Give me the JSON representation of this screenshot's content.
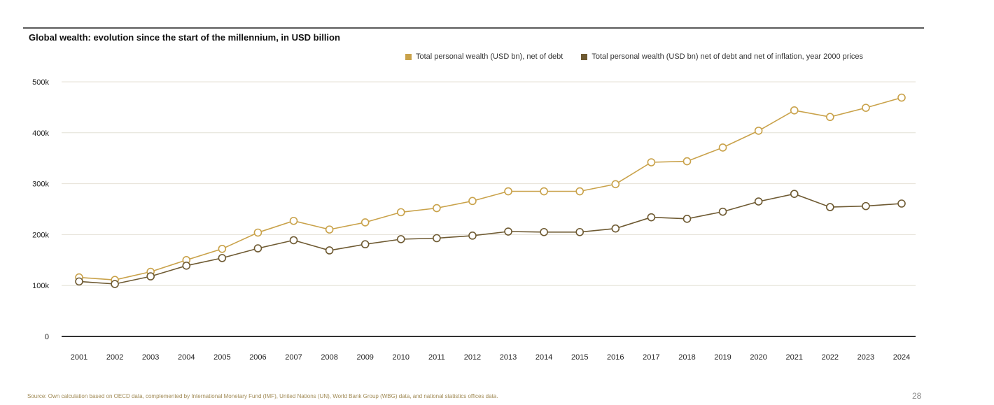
{
  "chart_title": "Global wealth: evolution since the start of the millennium, in USD billion",
  "colors": {
    "nominal": "#c9a24a",
    "real": "#6e5a32",
    "grid": "#e4e0d6",
    "axis": "#333333"
  },
  "chart_data": {
    "type": "line",
    "title": "Global wealth: evolution since the start of the millennium, in USD billion",
    "xlabel": "",
    "ylabel": "",
    "x": [
      "2001",
      "2002",
      "2003",
      "2004",
      "2005",
      "2006",
      "2007",
      "2008",
      "2009",
      "2010",
      "2011",
      "2012",
      "2013",
      "2014",
      "2015",
      "2016",
      "2017",
      "2018",
      "2019",
      "2020",
      "2021",
      "2022",
      "2023",
      "2024"
    ],
    "ylim": [
      0,
      500000
    ],
    "yticks": [
      0,
      100000,
      200000,
      300000,
      400000,
      500000
    ],
    "ytick_labels": [
      "0",
      "100k",
      "200k",
      "300k",
      "400k",
      "500k"
    ],
    "grid": true,
    "legend_position": "top-right",
    "markers": "hollow-circle",
    "series": [
      {
        "name": "Total personal wealth (USD bn), net of debt",
        "color": "#c9a24a",
        "values": [
          116000,
          111000,
          127000,
          150000,
          172000,
          204000,
          227000,
          210000,
          224000,
          244000,
          252000,
          266000,
          285000,
          285000,
          285000,
          299000,
          342000,
          344000,
          371000,
          404000,
          444000,
          431000,
          449000,
          469000
        ]
      },
      {
        "name": "Total personal wealth (USD bn) net of debt and net of inflation, year 2000 prices",
        "color": "#6e5a32",
        "values": [
          108000,
          103000,
          118000,
          139000,
          154000,
          173000,
          189000,
          169000,
          181000,
          191000,
          193000,
          198000,
          206000,
          205000,
          205000,
          212000,
          234000,
          231000,
          245000,
          265000,
          280000,
          254000,
          256000,
          261000
        ]
      }
    ]
  },
  "source": "Source: Own calculation based on OECD data, complemented by International Monetary Fund (IMF), United Nations (UN), World Bank Group (WBG) data, and national statistics offices data.",
  "page_number": "28"
}
